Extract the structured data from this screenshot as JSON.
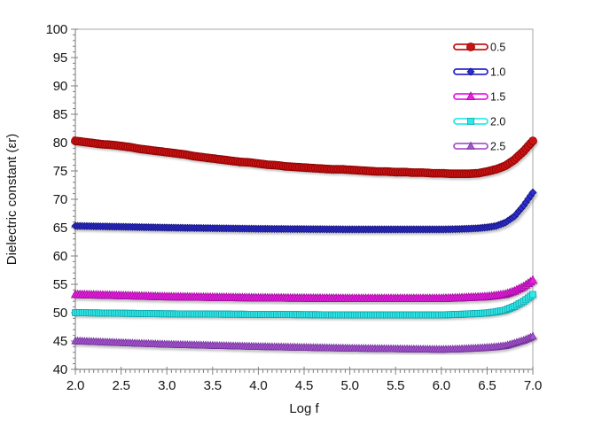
{
  "chart_data": {
    "type": "line",
    "title": "",
    "xlabel": "Log f",
    "ylabel": "Dielectric constant (εr)",
    "xlim": [
      2.0,
      7.0
    ],
    "ylim": [
      40,
      100
    ],
    "x_major_step": 0.5,
    "x_minor_step": 0.05,
    "y_major_step": 5,
    "y_minor_step": 1,
    "grid": false,
    "legend_position": "top-right-inside",
    "x_start": 2.0,
    "x_step": 0.1,
    "series": [
      {
        "name": "0.5",
        "marker": "circle",
        "size": 9,
        "color": "#C91414",
        "edge": "#8B0000",
        "values": [
          80.3,
          80.1,
          79.9,
          79.7,
          79.6,
          79.4,
          79.2,
          78.9,
          78.7,
          78.5,
          78.3,
          78.1,
          77.9,
          77.6,
          77.4,
          77.2,
          77.0,
          76.8,
          76.6,
          76.5,
          76.3,
          76.1,
          76.0,
          75.8,
          75.7,
          75.6,
          75.5,
          75.4,
          75.3,
          75.3,
          75.2,
          75.1,
          75.0,
          74.9,
          74.9,
          74.8,
          74.8,
          74.7,
          74.7,
          74.6,
          74.6,
          74.5,
          74.5,
          74.5,
          74.6,
          74.9,
          75.3,
          75.9,
          77.0,
          78.5,
          80.3
        ]
      },
      {
        "name": "1.0",
        "marker": "diamond",
        "size": 8,
        "color": "#2D2DCE",
        "edge": "#15157E",
        "values": [
          65.3,
          65.27,
          65.24,
          65.21,
          65.18,
          65.15,
          65.12,
          65.09,
          65.06,
          65.03,
          65.0,
          64.98,
          64.96,
          64.94,
          64.92,
          64.9,
          64.88,
          64.86,
          64.84,
          64.82,
          64.8,
          64.79,
          64.78,
          64.77,
          64.76,
          64.75,
          64.74,
          64.73,
          64.72,
          64.71,
          64.7,
          64.7,
          64.7,
          64.7,
          64.7,
          64.7,
          64.7,
          64.7,
          64.7,
          64.7,
          64.7,
          64.72,
          64.76,
          64.82,
          64.9,
          65.05,
          65.3,
          65.9,
          67.0,
          68.9,
          71.2
        ]
      },
      {
        "name": "1.5",
        "marker": "triangle",
        "size": 9,
        "color": "#EA1FE4",
        "edge": "#9C0D98",
        "values": [
          53.2,
          53.16,
          53.12,
          53.08,
          53.04,
          53.0,
          52.96,
          52.92,
          52.88,
          52.84,
          52.8,
          52.78,
          52.76,
          52.74,
          52.72,
          52.7,
          52.68,
          52.66,
          52.64,
          52.62,
          52.6,
          52.59,
          52.58,
          52.57,
          52.56,
          52.55,
          52.54,
          52.53,
          52.52,
          52.51,
          52.5,
          52.5,
          52.5,
          52.5,
          52.5,
          52.5,
          52.5,
          52.5,
          52.5,
          52.5,
          52.5,
          52.55,
          52.6,
          52.67,
          52.74,
          52.82,
          53.0,
          53.25,
          53.8,
          54.6,
          55.7
        ]
      },
      {
        "name": "2.0",
        "marker": "square",
        "size": 7,
        "color": "#2FE9E9",
        "edge": "#12A3A8",
        "values": [
          50.0,
          49.98,
          49.96,
          49.94,
          49.92,
          49.9,
          49.88,
          49.86,
          49.84,
          49.82,
          49.8,
          49.79,
          49.78,
          49.77,
          49.76,
          49.75,
          49.74,
          49.73,
          49.72,
          49.71,
          49.7,
          49.69,
          49.68,
          49.67,
          49.66,
          49.65,
          49.64,
          49.63,
          49.62,
          49.61,
          49.6,
          49.6,
          49.6,
          49.6,
          49.6,
          49.6,
          49.6,
          49.6,
          49.6,
          49.6,
          49.6,
          49.65,
          49.7,
          49.78,
          49.85,
          49.95,
          50.15,
          50.45,
          51.1,
          52.0,
          53.2
        ]
      },
      {
        "name": "2.5",
        "marker": "triangle",
        "size": 8,
        "color": "#A757CE",
        "edge": "#71309B",
        "values": [
          45.0,
          44.93,
          44.87,
          44.8,
          44.74,
          44.68,
          44.62,
          44.56,
          44.51,
          44.45,
          44.4,
          44.36,
          44.32,
          44.28,
          44.24,
          44.2,
          44.16,
          44.12,
          44.08,
          44.04,
          44.0,
          43.97,
          43.94,
          43.91,
          43.88,
          43.85,
          43.82,
          43.79,
          43.76,
          43.73,
          43.7,
          43.68,
          43.66,
          43.64,
          43.62,
          43.6,
          43.58,
          43.56,
          43.54,
          43.52,
          43.5,
          43.53,
          43.58,
          43.65,
          43.73,
          43.82,
          43.95,
          44.15,
          44.6,
          45.1,
          45.8
        ]
      }
    ],
    "axis_color": "#A6A6A6",
    "tick_color": "#7F7F7F",
    "border_color": "#B3B3B3"
  }
}
